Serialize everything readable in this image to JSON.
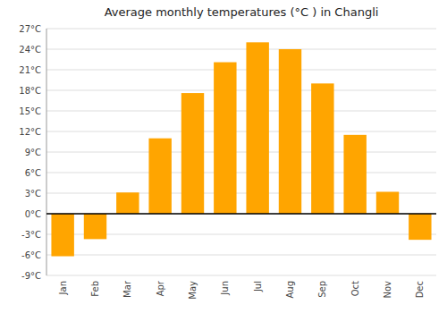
{
  "chart_data": {
    "type": "bar",
    "title": "Average monthly temperatures (°C ) in Changli",
    "categories": [
      "Jan",
      "Feb",
      "Mar",
      "Apr",
      "May",
      "Jun",
      "Jul",
      "Aug",
      "Sep",
      "Oct",
      "Nov",
      "Dec"
    ],
    "values": [
      -6.2,
      -3.7,
      3.1,
      11.0,
      17.6,
      22.1,
      25.0,
      24.0,
      19.0,
      11.5,
      3.2,
      -3.8
    ],
    "color": "#FFA500",
    "ylim": [
      -9,
      27
    ],
    "yticks": [
      {
        "value": -9,
        "label": "-9°C"
      },
      {
        "value": -6,
        "label": "-6°C"
      },
      {
        "value": -3,
        "label": "-3°C"
      },
      {
        "value": 0,
        "label": "0°C"
      },
      {
        "value": 3,
        "label": "3°C"
      },
      {
        "value": 6,
        "label": "6°C"
      },
      {
        "value": 9,
        "label": "9°C"
      },
      {
        "value": 12,
        "label": "12°C"
      },
      {
        "value": 15,
        "label": "15°C"
      },
      {
        "value": 18,
        "label": "18°C"
      },
      {
        "value": 21,
        "label": "21°C"
      },
      {
        "value": 24,
        "label": "24°C"
      },
      {
        "value": 27,
        "label": "27°C"
      }
    ],
    "grid": true
  }
}
